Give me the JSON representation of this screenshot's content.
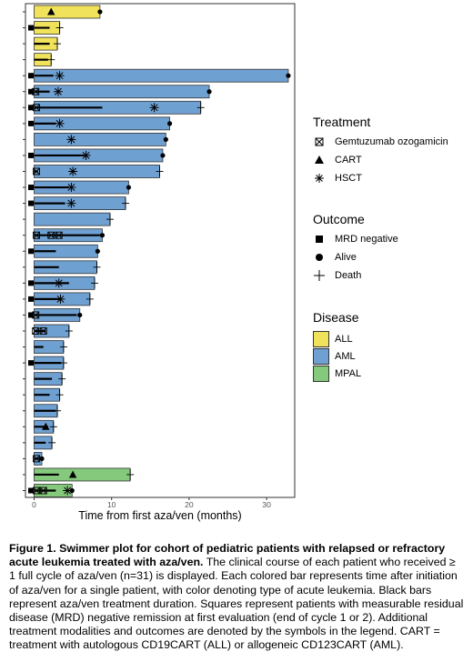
{
  "chart_data": {
    "type": "bar",
    "orientation": "horizontal",
    "xlabel": "Time from first aza/ven (months)",
    "ylabel": "",
    "xlim": [
      -1,
      33.5
    ],
    "xticks": [
      0,
      10,
      20,
      30
    ],
    "grid": false,
    "legend_position": "right",
    "patients": [
      {
        "disease": "ALL",
        "months": 8.5,
        "azaven": 0,
        "mrd": false,
        "outcome": "alive",
        "treatments": [
          {
            "type": "CART",
            "t": 2.2
          }
        ]
      },
      {
        "disease": "ALL",
        "months": 3.3,
        "azaven": 2.0,
        "mrd": true,
        "outcome": "death",
        "treatments": []
      },
      {
        "disease": "ALL",
        "months": 3.0,
        "azaven": 2.0,
        "mrd": false,
        "outcome": "death",
        "treatments": []
      },
      {
        "disease": "ALL",
        "months": 2.2,
        "azaven": 1.8,
        "mrd": false,
        "outcome": "death",
        "treatments": []
      },
      {
        "disease": "AML",
        "months": 32.8,
        "azaven": 2.5,
        "mrd": true,
        "outcome": "alive",
        "treatments": [
          {
            "type": "HSCT",
            "t": 3.3
          }
        ]
      },
      {
        "disease": "AML",
        "months": 22.6,
        "azaven": 2.0,
        "mrd": true,
        "outcome": "alive",
        "treatments": [
          {
            "type": "GO",
            "t": 0.2
          },
          {
            "type": "HSCT",
            "t": 3.1
          }
        ]
      },
      {
        "disease": "AML",
        "months": 21.5,
        "azaven": 8.8,
        "mrd": true,
        "outcome": "death",
        "treatments": [
          {
            "type": "GO",
            "t": 0.3
          },
          {
            "type": "HSCT",
            "t": 15.5
          }
        ]
      },
      {
        "disease": "AML",
        "months": 17.5,
        "azaven": 2.8,
        "mrd": true,
        "outcome": "alive",
        "treatments": [
          {
            "type": "HSCT",
            "t": 3.3
          }
        ]
      },
      {
        "disease": "AML",
        "months": 17.0,
        "azaven": 0,
        "mrd": false,
        "outcome": "alive",
        "treatments": [
          {
            "type": "HSCT",
            "t": 4.8
          }
        ]
      },
      {
        "disease": "AML",
        "months": 16.6,
        "azaven": 6.5,
        "mrd": true,
        "outcome": "alive",
        "treatments": [
          {
            "type": "HSCT",
            "t": 6.7
          }
        ]
      },
      {
        "disease": "AML",
        "months": 16.2,
        "azaven": 0.5,
        "mrd": false,
        "outcome": "death",
        "treatments": [
          {
            "type": "GO",
            "t": 0.3
          },
          {
            "type": "HSCT",
            "t": 5.0
          }
        ]
      },
      {
        "disease": "AML",
        "months": 12.2,
        "azaven": 4.5,
        "mrd": true,
        "outcome": "alive",
        "treatments": [
          {
            "type": "HSCT",
            "t": 4.8
          }
        ]
      },
      {
        "disease": "AML",
        "months": 11.8,
        "azaven": 4.0,
        "mrd": true,
        "outcome": "death",
        "treatments": [
          {
            "type": "HSCT",
            "t": 4.8
          }
        ]
      },
      {
        "disease": "AML",
        "months": 9.8,
        "azaven": 0,
        "mrd": false,
        "outcome": "death",
        "treatments": []
      },
      {
        "disease": "AML",
        "months": 8.8,
        "azaven": 8.5,
        "mrd": false,
        "outcome": "alive",
        "treatments": [
          {
            "type": "GO",
            "t": 0.3
          },
          {
            "type": "GO",
            "t": 2.2
          },
          {
            "type": "GO",
            "t": 3.2
          }
        ]
      },
      {
        "disease": "AML",
        "months": 8.2,
        "azaven": 2.8,
        "mrd": true,
        "outcome": "alive",
        "treatments": []
      },
      {
        "disease": "AML",
        "months": 8.1,
        "azaven": 3.2,
        "mrd": false,
        "outcome": "death",
        "treatments": []
      },
      {
        "disease": "AML",
        "months": 7.8,
        "azaven": 4.5,
        "mrd": true,
        "outcome": "death",
        "treatments": [
          {
            "type": "HSCT",
            "t": 3.2
          }
        ]
      },
      {
        "disease": "AML",
        "months": 7.2,
        "azaven": 3.5,
        "mrd": true,
        "outcome": "death",
        "treatments": [
          {
            "type": "HSCT",
            "t": 3.4
          }
        ]
      },
      {
        "disease": "AML",
        "months": 5.9,
        "azaven": 5.5,
        "mrd": true,
        "outcome": "alive",
        "treatments": [
          {
            "type": "GO",
            "t": 0.2
          }
        ]
      },
      {
        "disease": "AML",
        "months": 4.5,
        "azaven": 1.5,
        "mrd": false,
        "outcome": "death",
        "treatments": [
          {
            "type": "GO",
            "t": 0.2
          },
          {
            "type": "GO",
            "t": 1.2
          }
        ]
      },
      {
        "disease": "AML",
        "months": 3.8,
        "azaven": 1.2,
        "mrd": false,
        "outcome": "death",
        "treatments": []
      },
      {
        "disease": "AML",
        "months": 3.8,
        "azaven": 3.5,
        "mrd": true,
        "outcome": "death",
        "treatments": []
      },
      {
        "disease": "AML",
        "months": 3.6,
        "azaven": 2.3,
        "mrd": false,
        "outcome": "death",
        "treatments": []
      },
      {
        "disease": "AML",
        "months": 3.3,
        "azaven": 2.0,
        "mrd": false,
        "outcome": "death",
        "treatments": []
      },
      {
        "disease": "AML",
        "months": 3.0,
        "azaven": 2.8,
        "mrd": false,
        "outcome": "death",
        "treatments": []
      },
      {
        "disease": "AML",
        "months": 2.5,
        "azaven": 1.8,
        "mrd": false,
        "outcome": "death",
        "treatments": [
          {
            "type": "CART",
            "t": 1.5
          }
        ]
      },
      {
        "disease": "AML",
        "months": 2.3,
        "azaven": 1.5,
        "mrd": false,
        "outcome": "death",
        "treatments": []
      },
      {
        "disease": "AML",
        "months": 1.0,
        "azaven": 0.8,
        "mrd": false,
        "outcome": "alive",
        "treatments": [
          {
            "type": "GO",
            "t": 0.3
          }
        ]
      },
      {
        "disease": "MPAL",
        "months": 12.4,
        "azaven": 3.2,
        "mrd": false,
        "outcome": "death",
        "treatments": [
          {
            "type": "CART",
            "t": 5.0
          }
        ]
      },
      {
        "disease": "MPAL",
        "months": 4.9,
        "azaven": 2.8,
        "mrd": true,
        "outcome": "alive",
        "treatments": [
          {
            "type": "GO",
            "t": 0.3
          },
          {
            "type": "GO",
            "t": 1.2
          },
          {
            "type": "HSCT",
            "t": 4.3
          }
        ]
      }
    ]
  },
  "colors": {
    "ALL": "#f0e25a",
    "AML": "#6fa0d2",
    "MPAL": "#84c97c",
    "azaven_bar": "#000000"
  },
  "legend": {
    "treatment": {
      "title": "Treatment",
      "items": [
        {
          "symbol": "gemtuzumab-icon",
          "label": "Gemtuzumab ozogamicin"
        },
        {
          "symbol": "triangle-icon",
          "label": "CART"
        },
        {
          "symbol": "asterisk-icon",
          "label": "HSCT"
        }
      ]
    },
    "outcome": {
      "title": "Outcome",
      "items": [
        {
          "symbol": "square-icon",
          "label": "MRD negative"
        },
        {
          "symbol": "circle-icon",
          "label": "Alive"
        },
        {
          "symbol": "plus-icon",
          "label": "Death"
        }
      ]
    },
    "disease": {
      "title": "Disease",
      "items": [
        {
          "label": "ALL",
          "color": "#f0e25a"
        },
        {
          "label": "AML",
          "color": "#6fa0d2"
        },
        {
          "label": "MPAL",
          "color": "#84c97c"
        }
      ]
    }
  },
  "caption": {
    "bold": "Figure 1. Swimmer plot for cohort of pediatric patients with relapsed or refractory acute leukemia treated with aza/ven.",
    "text": "The clinical course of each patient who received ≥ 1 full cycle of aza/ven (n=31) is displayed. Each colored bar represents time after initiation of aza/ven for a single patient, with color denoting type of acute leukemia. Black bars represent aza/ven treatment duration. Squares represent patients with measurable residual disease (MRD) negative remission at first evaluation (end of cycle 1 or 2).  Additional treatment modalities and outcomes are denoted by the symbols in the legend. CART = treatment with autologous CD19CART (ALL) or allogeneic CD123CART (AML)."
  }
}
